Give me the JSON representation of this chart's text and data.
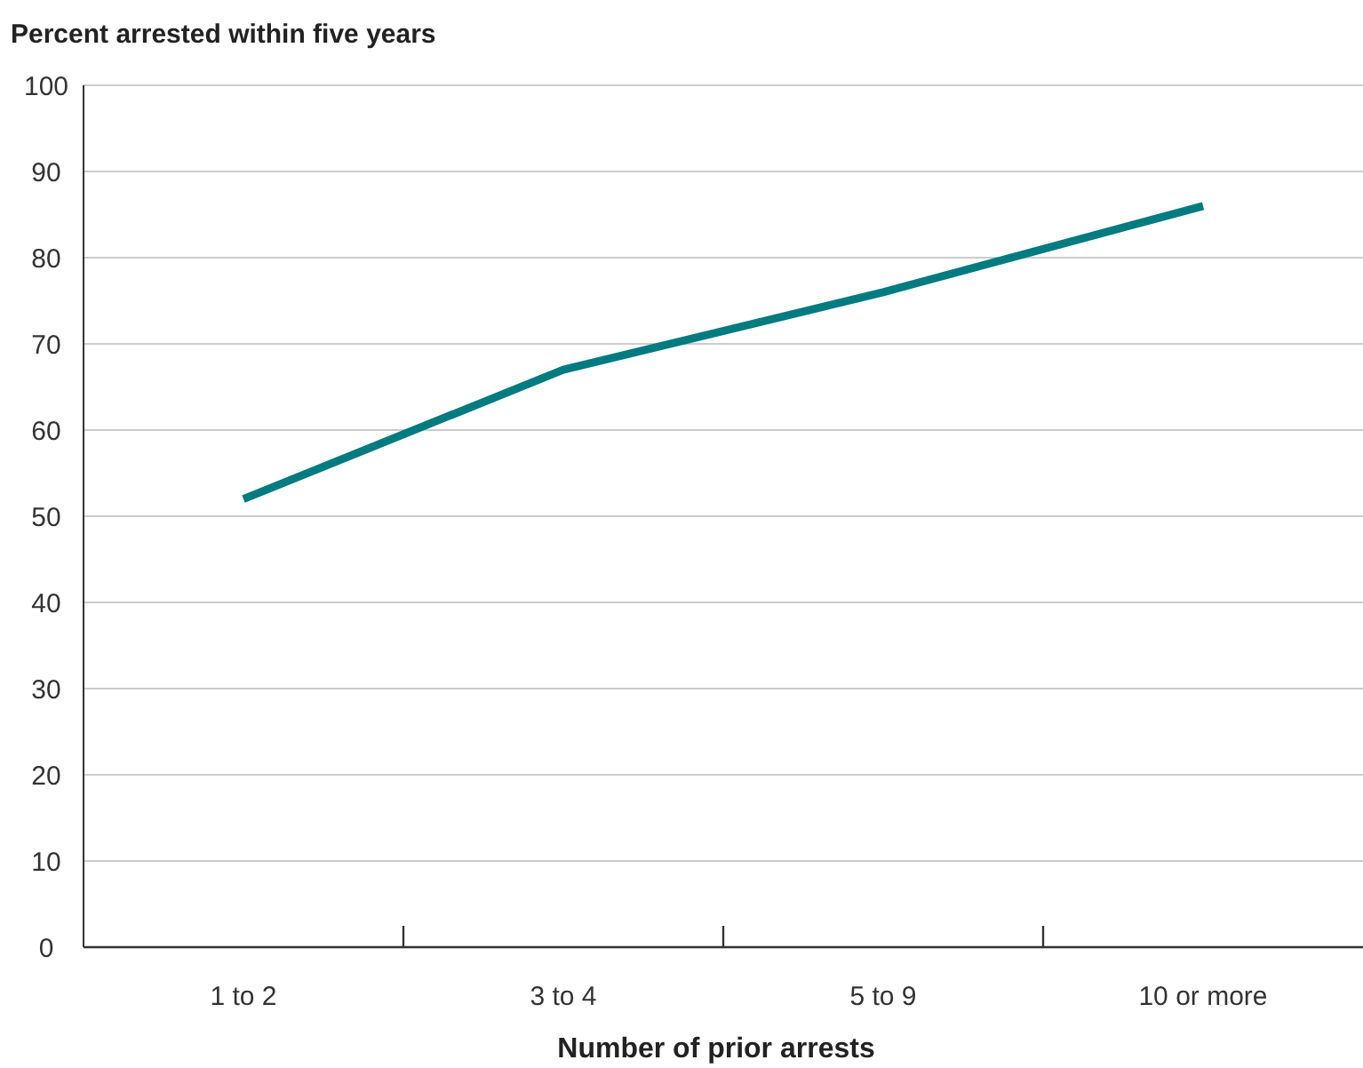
{
  "chart_data": {
    "type": "line",
    "ylabel": "Percent arrested within five years",
    "xlabel": "Number of prior arrests",
    "categories": [
      "1 to 2",
      "3 to 4",
      "5 to 9",
      "10 or more"
    ],
    "series": [
      {
        "color": "#007b80",
        "values": [
          52,
          67,
          76,
          86
        ]
      }
    ],
    "ylim": [
      0,
      100
    ],
    "yticks": [
      0,
      10,
      20,
      30,
      40,
      50,
      60,
      70,
      80,
      90,
      100
    ],
    "grid": "y",
    "marker": "none",
    "line_style": "solid"
  }
}
